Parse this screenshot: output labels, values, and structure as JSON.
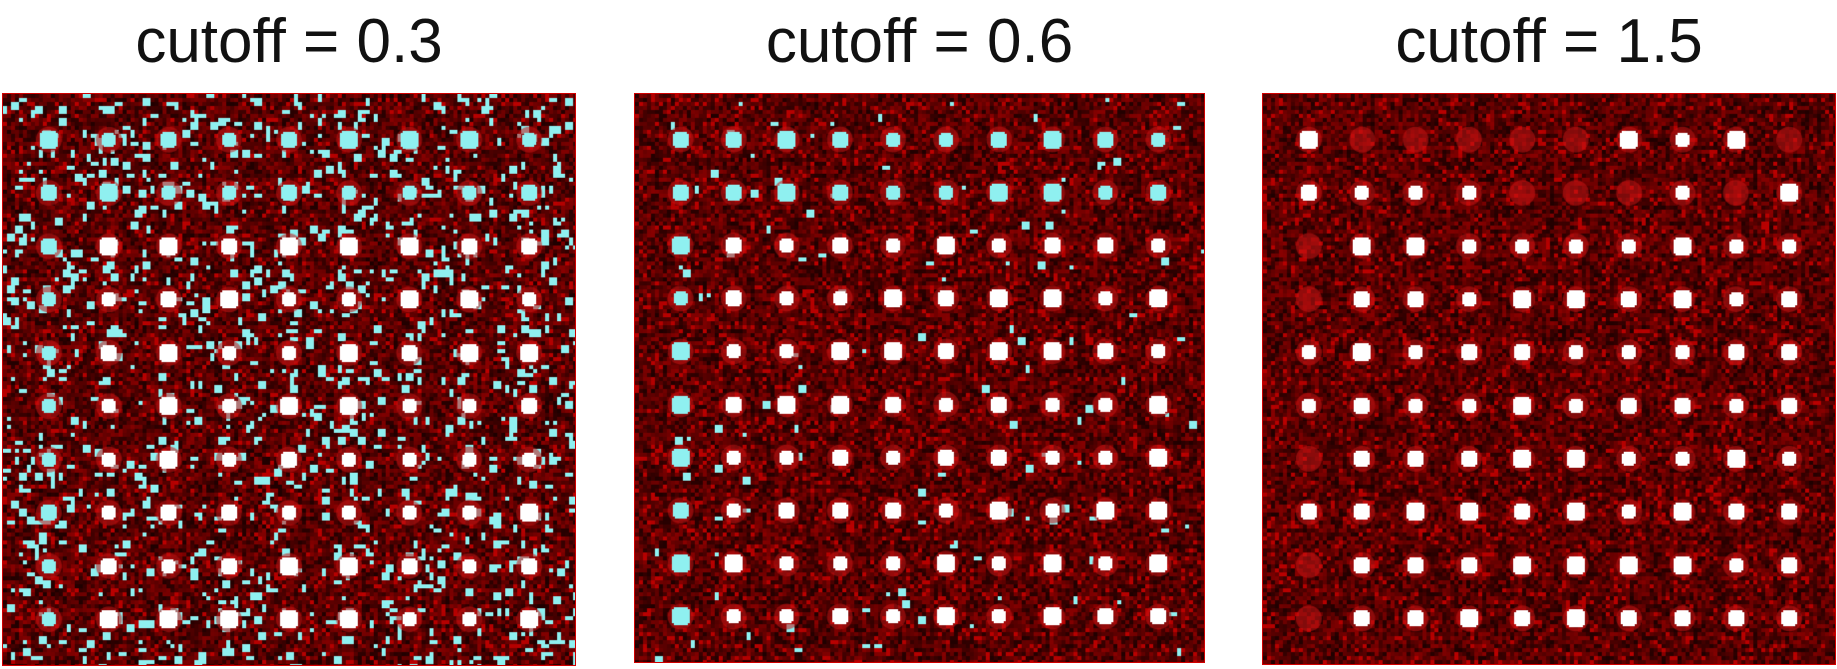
{
  "panels": [
    {
      "title": "cutoff = 0.3",
      "cutoff": 0.3,
      "grid": {
        "rows": 10,
        "cols": 9
      },
      "colors": {
        "background": "#7a0000",
        "dark": "#1a0000",
        "spot": "#ffffff",
        "highlight": "#8ff0f0"
      }
    },
    {
      "title": "cutoff = 0.6",
      "cutoff": 0.6,
      "grid": {
        "rows": 10,
        "cols": 10
      },
      "colors": {
        "background": "#7a0000",
        "dark": "#1a0000",
        "spot": "#ffffff",
        "highlight": "#8ff0f0"
      }
    },
    {
      "title": "cutoff = 1.5",
      "cutoff": 1.5,
      "grid": {
        "rows": 10,
        "cols": 10
      },
      "colors": {
        "background": "#7a0000",
        "dark": "#1a0000",
        "spot": "#ffffff",
        "highlight": "#8ff0f0"
      }
    }
  ]
}
